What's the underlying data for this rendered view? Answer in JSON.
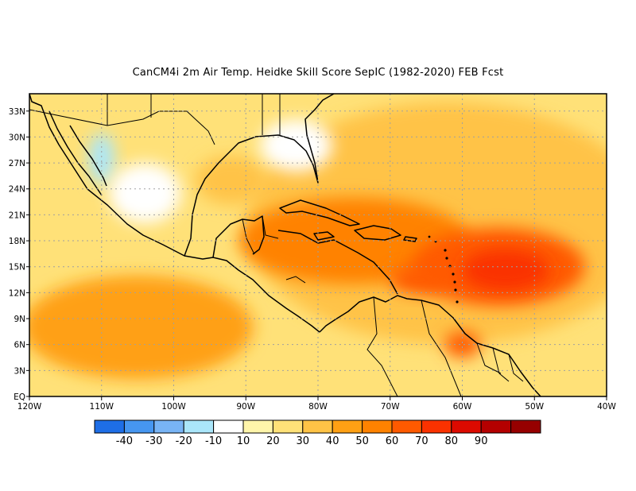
{
  "title": "CanCM4i  2m Air Temp. Heidke Skill Score SepIC (1982-2020) FEB Fcst",
  "map": {
    "lon_range": [
      -120,
      -40
    ],
    "lat_range": [
      0,
      35
    ],
    "lon_ticks": [
      {
        "value": -120,
        "label": "120W"
      },
      {
        "value": -110,
        "label": "110W"
      },
      {
        "value": -100,
        "label": "100W"
      },
      {
        "value": -90,
        "label": "90W"
      },
      {
        "value": -80,
        "label": "80W"
      },
      {
        "value": -70,
        "label": "70W"
      },
      {
        "value": -60,
        "label": "60W"
      },
      {
        "value": -50,
        "label": "50W"
      },
      {
        "value": -40,
        "label": "40W"
      }
    ],
    "lat_ticks": [
      {
        "value": 0,
        "label": "EQ"
      },
      {
        "value": 3,
        "label": "3N"
      },
      {
        "value": 6,
        "label": "6N"
      },
      {
        "value": 9,
        "label": "9N"
      },
      {
        "value": 12,
        "label": "12N"
      },
      {
        "value": 15,
        "label": "15N"
      },
      {
        "value": 18,
        "label": "18N"
      },
      {
        "value": 21,
        "label": "21N"
      },
      {
        "value": 24,
        "label": "24N"
      },
      {
        "value": 27,
        "label": "27N"
      },
      {
        "value": 30,
        "label": "30N"
      },
      {
        "value": 33,
        "label": "33N"
      }
    ],
    "grid": true
  },
  "colorbar": {
    "colors": [
      "#1e6ee6",
      "#4696f0",
      "#78b4f5",
      "#aae6fa",
      "#ffffff",
      "#fff5aa",
      "#ffe178",
      "#ffc346",
      "#ffa014",
      "#ff8200",
      "#ff5a00",
      "#fa3200",
      "#dc0a00",
      "#b40000",
      "#960000"
    ],
    "labels": [
      "-40",
      "-30",
      "-20",
      "-10",
      "10",
      "20",
      "30",
      "40",
      "50",
      "60",
      "70",
      "80",
      "90"
    ]
  },
  "chart_data": {
    "type": "heatmap",
    "title": "CanCM4i  2m Air Temp. Heidke Skill Score SepIC (1982-2020) FEB Fcst",
    "xlim": [
      -120,
      -40
    ],
    "ylim": [
      0,
      35
    ],
    "levels": [
      -40,
      -30,
      -20,
      -10,
      10,
      20,
      30,
      40,
      50,
      60,
      70,
      80,
      90
    ],
    "regions": [
      {
        "lon": -62,
        "lat": 20,
        "rx": 28,
        "ry": 14,
        "value": 35
      },
      {
        "lon": -105,
        "lat": 8,
        "rx": 16,
        "ry": 6,
        "value": 45
      },
      {
        "lon": -75,
        "lat": 18,
        "rx": 16,
        "ry": 5,
        "value": 52
      },
      {
        "lon": -55,
        "lat": 15,
        "rx": 12,
        "ry": 4.5,
        "value": 62
      },
      {
        "lon": -54,
        "lat": 14.6,
        "rx": 6,
        "ry": 2.4,
        "value": 72
      },
      {
        "lon": -66,
        "lat": 13.5,
        "rx": 4,
        "ry": 1.6,
        "value": 66
      },
      {
        "lon": -60,
        "lat": 6,
        "rx": 2.5,
        "ry": 1.5,
        "value": 62
      },
      {
        "lon": -110,
        "lat": 27.5,
        "rx": 1.8,
        "ry": 3,
        "value": -15
      },
      {
        "lon": -92,
        "lat": 25,
        "rx": 5,
        "ry": 2.8,
        "value": 32
      },
      {
        "lon": -104,
        "lat": 23.5,
        "rx": 5,
        "ry": 3.5,
        "value": 5
      },
      {
        "lon": -83,
        "lat": 29,
        "rx": 5,
        "ry": 3,
        "value": 5
      }
    ]
  }
}
